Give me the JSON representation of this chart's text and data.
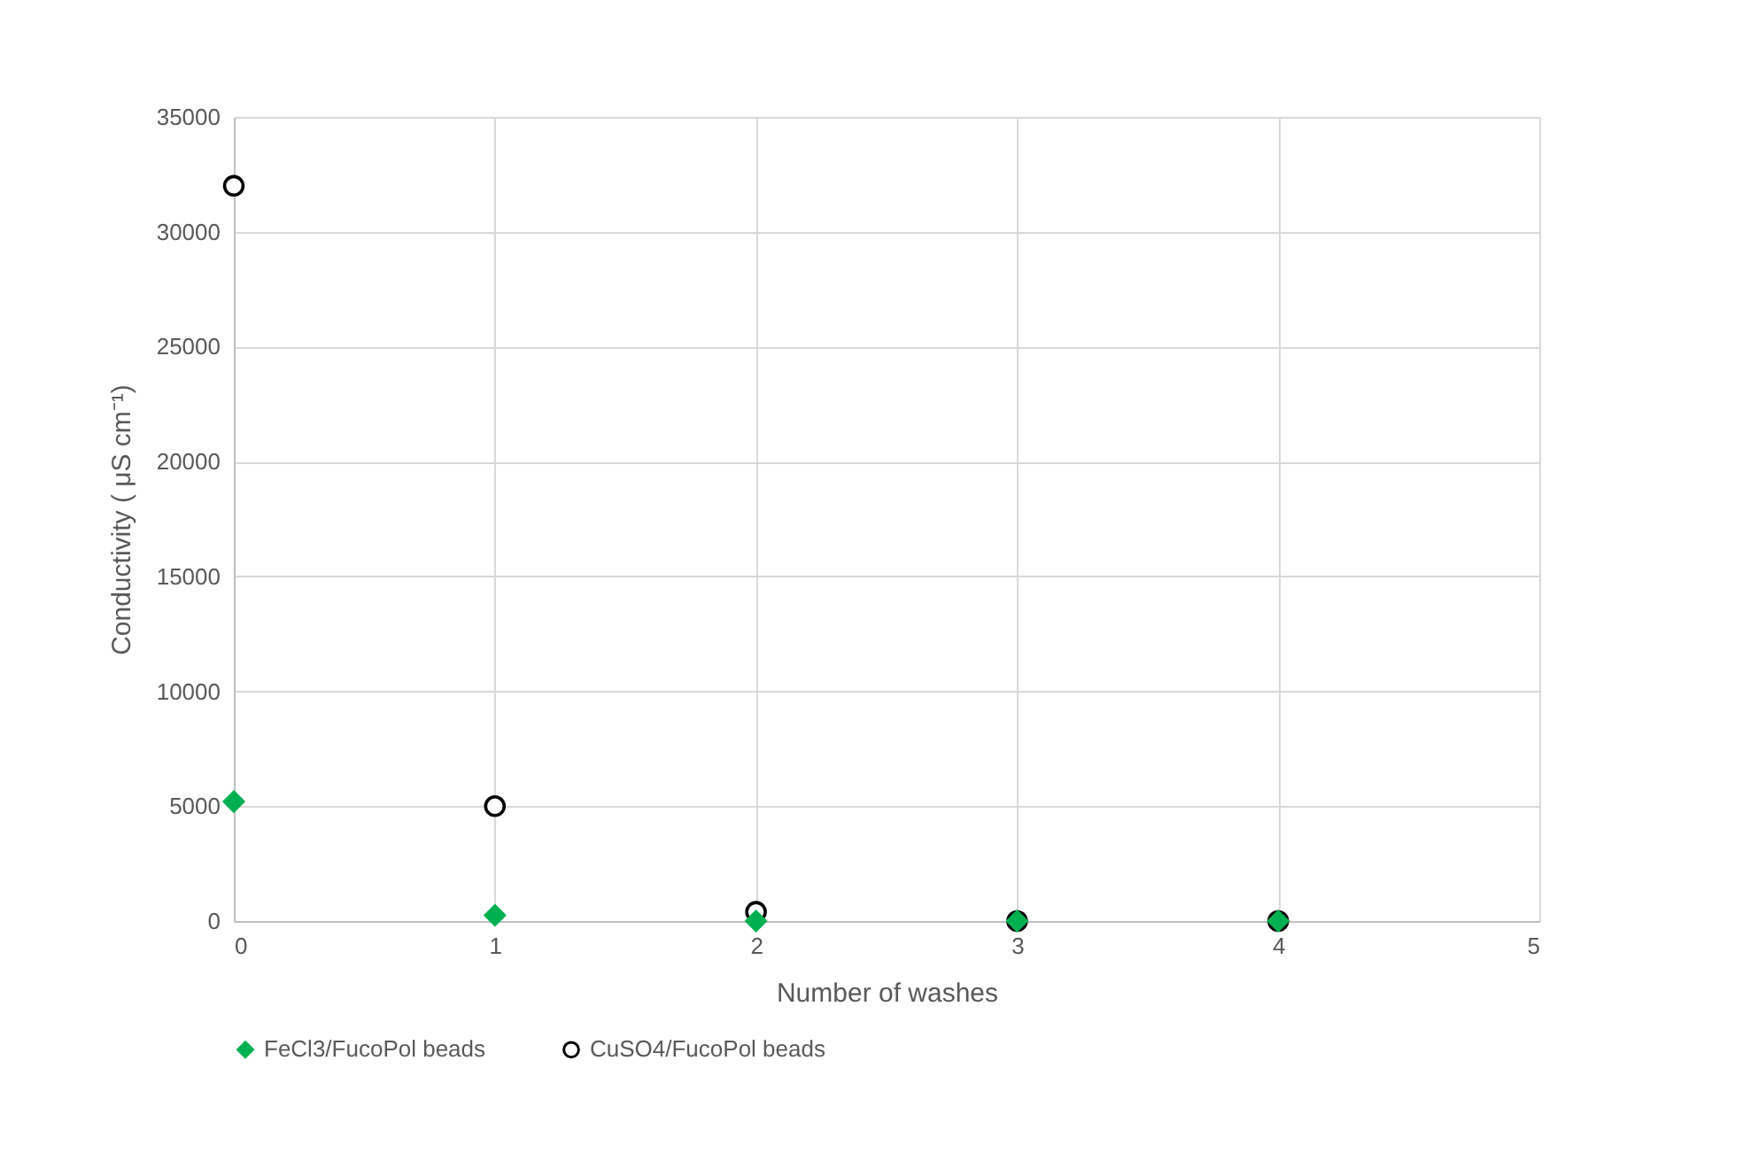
{
  "chart_data": {
    "type": "scatter",
    "xlabel": "Number of washes",
    "ylabel": "Conductivity ( μS cm⁻¹)",
    "x": [
      0,
      1,
      2,
      3,
      4
    ],
    "series": [
      {
        "name": "FeCl3/FucoPol beads",
        "color": "#00b050",
        "marker": "diamond",
        "values": [
          5200,
          250,
          0,
          0,
          0
        ]
      },
      {
        "name": "CuSO4/FucoPol beads",
        "color": "#000000",
        "marker": "circle",
        "values": [
          32000,
          5000,
          400,
          0,
          0
        ]
      }
    ],
    "xlim": [
      0,
      5
    ],
    "xticks": [
      0,
      1,
      2,
      3,
      4,
      5
    ],
    "ylim": [
      0,
      35000
    ],
    "yticks": [
      0,
      5000,
      10000,
      15000,
      20000,
      25000,
      30000,
      35000
    ],
    "grid": true,
    "legend": "bottom"
  }
}
